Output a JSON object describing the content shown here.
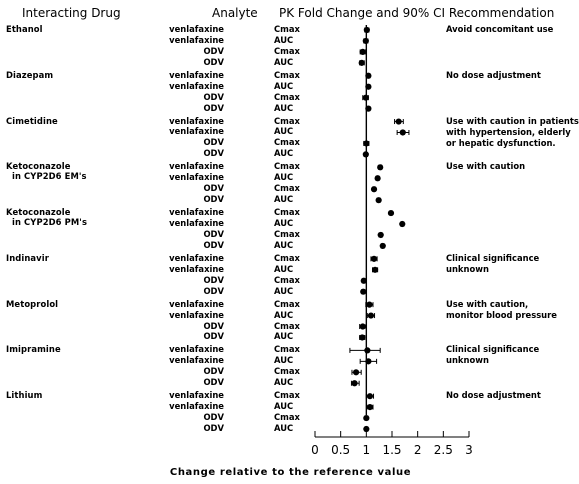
{
  "headers": {
    "interacting_drug": "Interacting Drug",
    "analyte": "Analyte",
    "pk_and_recommendation": "PK Fold Change and 90% CI Recommendation"
  },
  "chart_data": {
    "type": "forest",
    "title": "PK Fold Change and 90% CI Recommendation",
    "xlabel": "Change relative to the reference value",
    "xlim": [
      0,
      3
    ],
    "xticks": [
      0,
      0.5,
      1,
      1.5,
      2,
      2.5,
      3
    ],
    "xtick_labels": [
      "0",
      "0.5",
      "1",
      "1.5",
      "2",
      "2.5",
      "3"
    ],
    "reference_line": 1,
    "groups": [
      {
        "drug": [
          "Ethanol"
        ],
        "recommendation": [
          "Avoid concomitant use"
        ],
        "rows": [
          {
            "analyte": "venlafaxine",
            "param": "Cmax",
            "estimate": 1.01,
            "ci": [
              0.97,
              1.05
            ]
          },
          {
            "analyte": "venlafaxine",
            "param": "AUC",
            "estimate": 0.99,
            "ci": [
              0.95,
              1.03
            ]
          },
          {
            "analyte": "ODV",
            "param": "Cmax",
            "estimate": 0.93,
            "ci": [
              0.88,
              0.98
            ]
          },
          {
            "analyte": "ODV",
            "param": "AUC",
            "estimate": 0.91,
            "ci": [
              0.87,
              0.96
            ]
          }
        ]
      },
      {
        "drug": [
          "Diazepam"
        ],
        "recommendation": [
          "No dose adjustment"
        ],
        "rows": [
          {
            "analyte": "venlafaxine",
            "param": "Cmax",
            "estimate": 1.04,
            "ci": [
              1.01,
              1.07
            ]
          },
          {
            "analyte": "venlafaxine",
            "param": "AUC",
            "estimate": 1.04,
            "ci": [
              1.01,
              1.07
            ]
          },
          {
            "analyte": "ODV",
            "param": "Cmax",
            "estimate": 0.99,
            "ci": [
              0.93,
              1.04
            ]
          },
          {
            "analyte": "ODV",
            "param": "AUC",
            "estimate": 1.04,
            "ci": [
              1.01,
              1.07
            ]
          }
        ]
      },
      {
        "drug": [
          "Cimetidine"
        ],
        "recommendation": [
          "Use with caution in patients",
          "with hypertension, elderly",
          "or hepatic dysfunction."
        ],
        "rows": [
          {
            "analyte": "venlafaxine",
            "param": "Cmax",
            "estimate": 1.63,
            "ci": [
              1.55,
              1.72
            ]
          },
          {
            "analyte": "venlafaxine",
            "param": "AUC",
            "estimate": 1.71,
            "ci": [
              1.6,
              1.83
            ]
          },
          {
            "analyte": "ODV",
            "param": "Cmax",
            "estimate": 1.0,
            "ci": [
              0.95,
              1.05
            ]
          },
          {
            "analyte": "ODV",
            "param": "AUC",
            "estimate": 0.99,
            "ci": [
              0.96,
              1.02
            ]
          }
        ]
      },
      {
        "drug": [
          "Ketoconazole",
          "in CYP2D6 EM's"
        ],
        "recommendation": [
          "Use with caution"
        ],
        "rows": [
          {
            "analyte": "venlafaxine",
            "param": "Cmax",
            "estimate": 1.27,
            "ci": [
              1.24,
              1.3
            ]
          },
          {
            "analyte": "venlafaxine",
            "param": "AUC",
            "estimate": 1.22,
            "ci": [
              1.19,
              1.25
            ]
          },
          {
            "analyte": "ODV",
            "param": "Cmax",
            "estimate": 1.15,
            "ci": [
              1.12,
              1.18
            ]
          },
          {
            "analyte": "ODV",
            "param": "AUC",
            "estimate": 1.24,
            "ci": [
              1.21,
              1.27
            ]
          }
        ]
      },
      {
        "drug": [
          "Ketoconazole",
          "in CYP2D6 PM's"
        ],
        "recommendation": [],
        "rows": [
          {
            "analyte": "venlafaxine",
            "param": "Cmax",
            "estimate": 1.48,
            "ci": [
              1.45,
              1.51
            ]
          },
          {
            "analyte": "venlafaxine",
            "param": "AUC",
            "estimate": 1.7,
            "ci": [
              1.67,
              1.73
            ]
          },
          {
            "analyte": "ODV",
            "param": "Cmax",
            "estimate": 1.28,
            "ci": [
              1.25,
              1.31
            ]
          },
          {
            "analyte": "ODV",
            "param": "AUC",
            "estimate": 1.32,
            "ci": [
              1.29,
              1.35
            ]
          }
        ]
      },
      {
        "drug": [
          "Indinavir"
        ],
        "recommendation": [
          "Clinical significance",
          "unknown"
        ],
        "rows": [
          {
            "analyte": "venlafaxine",
            "param": "Cmax",
            "estimate": 1.15,
            "ci": [
              1.09,
              1.21
            ]
          },
          {
            "analyte": "venlafaxine",
            "param": "AUC",
            "estimate": 1.17,
            "ci": [
              1.12,
              1.22
            ]
          },
          {
            "analyte": "ODV",
            "param": "Cmax",
            "estimate": 0.95,
            "ci": [
              0.92,
              0.98
            ]
          },
          {
            "analyte": "ODV",
            "param": "AUC",
            "estimate": 0.94,
            "ci": [
              0.91,
              0.97
            ]
          }
        ]
      },
      {
        "drug": [
          "Metoprolol"
        ],
        "recommendation": [
          "Use with caution,",
          "monitor blood pressure"
        ],
        "rows": [
          {
            "analyte": "venlafaxine",
            "param": "Cmax",
            "estimate": 1.06,
            "ci": [
              0.99,
              1.13
            ]
          },
          {
            "analyte": "venlafaxine",
            "param": "AUC",
            "estimate": 1.09,
            "ci": [
              1.02,
              1.16
            ]
          },
          {
            "analyte": "ODV",
            "param": "Cmax",
            "estimate": 0.93,
            "ci": [
              0.87,
              0.99
            ]
          },
          {
            "analyte": "ODV",
            "param": "AUC",
            "estimate": 0.92,
            "ci": [
              0.87,
              0.97
            ]
          }
        ]
      },
      {
        "drug": [
          "Imipramine"
        ],
        "recommendation": [
          "Clinical significance",
          "unknown"
        ],
        "rows": [
          {
            "analyte": "venlafaxine",
            "param": "Cmax",
            "estimate": 1.02,
            "ci": [
              0.68,
              1.27
            ]
          },
          {
            "analyte": "venlafaxine",
            "param": "AUC",
            "estimate": 1.04,
            "ci": [
              0.88,
              1.2
            ]
          },
          {
            "analyte": "ODV",
            "param": "Cmax",
            "estimate": 0.8,
            "ci": [
              0.72,
              0.9
            ]
          },
          {
            "analyte": "ODV",
            "param": "AUC",
            "estimate": 0.77,
            "ci": [
              0.71,
              0.86
            ]
          }
        ]
      },
      {
        "drug": [
          "Lithium"
        ],
        "recommendation": [
          "No dose adjustment"
        ],
        "rows": [
          {
            "analyte": "venlafaxine",
            "param": "Cmax",
            "estimate": 1.07,
            "ci": [
              1.0,
              1.14
            ]
          },
          {
            "analyte": "venlafaxine",
            "param": "AUC",
            "estimate": 1.07,
            "ci": [
              1.01,
              1.13
            ]
          },
          {
            "analyte": "ODV",
            "param": "Cmax",
            "estimate": 1.0,
            "ci": [
              0.97,
              1.03
            ]
          },
          {
            "analyte": "ODV",
            "param": "AUC",
            "estimate": 1.0,
            "ci": [
              0.97,
              1.03
            ]
          }
        ]
      }
    ]
  }
}
